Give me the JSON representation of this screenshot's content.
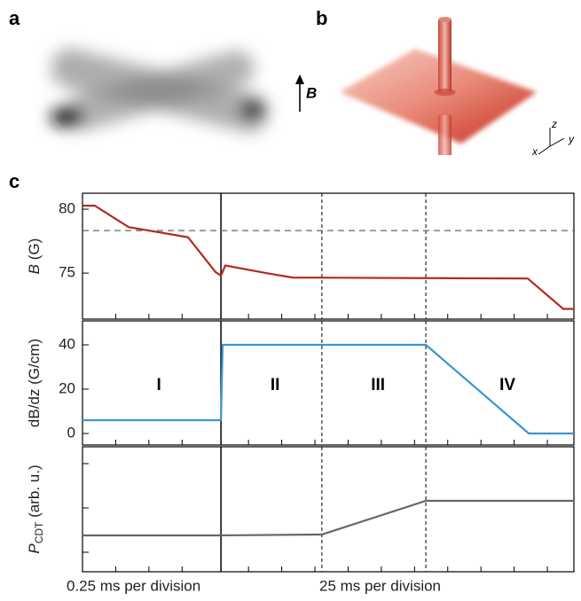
{
  "figure": {
    "panel_labels": [
      "a",
      "b",
      "c"
    ],
    "field_label": "B",
    "axes_labels": [
      "x",
      "y",
      "z"
    ],
    "x_captions": [
      "0.25 ms per division",
      "25 ms per division"
    ],
    "shared_x": {
      "xlim": [
        0,
        14.8
      ],
      "xticks": [
        1,
        2,
        3,
        5,
        6,
        7,
        8,
        9,
        10,
        11,
        12,
        13,
        14
      ],
      "dividers": [
        4.17,
        7.21,
        10.34
      ]
    }
  },
  "chart_data": [
    {
      "type": "line",
      "ylabel": [
        "B",
        " (G)"
      ],
      "ylim": [
        71.4,
        81.25
      ],
      "yticks": [
        75,
        80
      ],
      "reference_line": 78.33,
      "series": [
        {
          "color": "#b22a22",
          "x": [
            0,
            0.37,
            1.39,
            3.18,
            4.01,
            4.17,
            4.3,
            5.53,
            6.33,
            13.41,
            14.48,
            14.8
          ],
          "values": [
            80.28,
            80.28,
            78.6,
            77.8,
            75.07,
            74.8,
            75.6,
            75,
            74.65,
            74.58,
            72.2,
            72.2
          ]
        }
      ]
    },
    {
      "type": "line",
      "ylabel": [
        "dB/dz (G/cm)"
      ],
      "ylim": [
        -5.2,
        50.8
      ],
      "yticks": [
        0,
        20,
        40
      ],
      "annotations": [
        "I",
        "II",
        "III",
        "IV"
      ],
      "series": [
        {
          "color": "#3a96d2",
          "x": [
            0,
            4.17,
            4.22,
            10.34,
            13.44,
            14.8
          ],
          "values": [
            6,
            6,
            40,
            40,
            0,
            0
          ]
        }
      ]
    },
    {
      "type": "line",
      "ylabel": [
        "P",
        "CDT",
        " (arb. u.)"
      ],
      "ylim": [
        -0.44,
        2.38
      ],
      "yticks": [
        0,
        1,
        2
      ],
      "series": [
        {
          "color": "#666666",
          "x": [
            0,
            4.17,
            7.21,
            10.34,
            14.8
          ],
          "values": [
            0.38,
            0.38,
            0.4,
            1.16,
            1.16
          ]
        }
      ]
    }
  ]
}
